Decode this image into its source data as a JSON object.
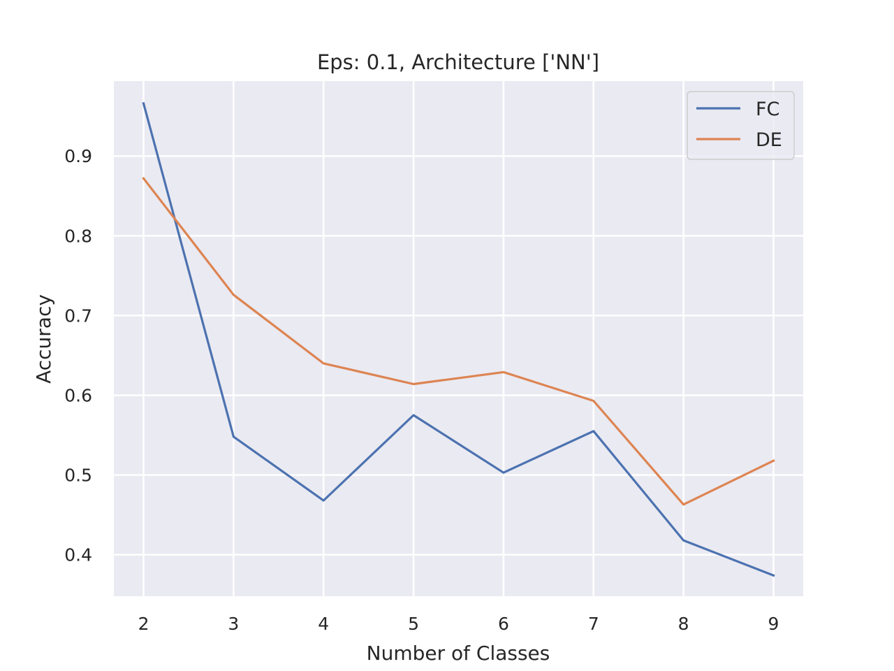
{
  "chart_data": {
    "type": "line",
    "title": "Eps: 0.1, Architecture ['NN']",
    "xlabel": "Number of Classes",
    "ylabel": "Accuracy",
    "x": [
      2,
      3,
      4,
      5,
      6,
      7,
      8,
      9
    ],
    "xticks": [
      "2",
      "3",
      "4",
      "5",
      "6",
      "7",
      "8",
      "9"
    ],
    "yticks": [
      "0.4",
      "0.5",
      "0.6",
      "0.7",
      "0.8",
      "0.9"
    ],
    "xlim": [
      1.67,
      9.33
    ],
    "ylim": [
      0.348,
      0.994
    ],
    "grid": true,
    "background": "#eaeaf2",
    "legend_position": "top-right",
    "series": [
      {
        "name": "FC",
        "color": "#4c72b0",
        "values": [
          0.966,
          0.548,
          0.468,
          0.575,
          0.503,
          0.555,
          0.418,
          0.374
        ]
      },
      {
        "name": "DE",
        "color": "#dd8452",
        "values": [
          0.872,
          0.726,
          0.64,
          0.614,
          0.629,
          0.593,
          0.463,
          0.518
        ]
      }
    ]
  }
}
